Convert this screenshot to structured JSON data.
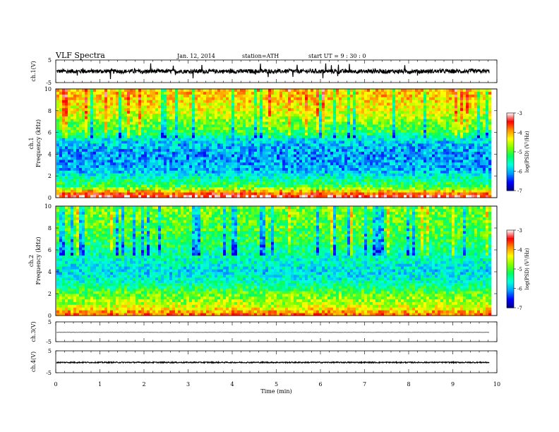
{
  "header": {
    "title": "VLF  Spectra",
    "date": "Jan. 12, 2014",
    "station": "station=ATH",
    "start": "start  UT =   9 : 30 : 0"
  },
  "chart_data": [
    {
      "type": "line",
      "panel": "ch1-waveform",
      "ylabel": "ch.1(V)",
      "ylim": [
        -5,
        5
      ],
      "yticks": [
        "5",
        "-5"
      ],
      "xlim": [
        0,
        10
      ],
      "trace_mean": 0,
      "trace_spread": 0.9,
      "spike_max": 3.5,
      "color": "#000000"
    },
    {
      "type": "heatmap",
      "panel": "ch1-spectrogram",
      "ylabel": "ch.1\nFrequency  (kHz)",
      "ylim": [
        0,
        10
      ],
      "yticks": [
        "0",
        "2",
        "4",
        "6",
        "8",
        "10"
      ],
      "xlim": [
        0,
        9.8
      ],
      "zlabel": "log(PSD) (V²/Hz)",
      "zlim": [
        -7,
        -3
      ],
      "colorbar_ticks": [
        "-3",
        "-4",
        "-5",
        "-6",
        "-7"
      ],
      "colormap": [
        "#000080",
        "#0000ff",
        "#00a0ff",
        "#00ffe0",
        "#00ff60",
        "#80ff00",
        "#ffff00",
        "#ff9000",
        "#ff0000",
        "#ffffff"
      ],
      "profile_khz": [
        0,
        0.5,
        1,
        1.5,
        2,
        2.5,
        3,
        4,
        5,
        5.5,
        6,
        7,
        8,
        9,
        10
      ],
      "profile_log_psd": [
        -3.2,
        -3.8,
        -5.0,
        -5.3,
        -5.6,
        -6.0,
        -6.0,
        -6.1,
        -5.9,
        -5.7,
        -5.1,
        -4.8,
        -4.4,
        -4.2,
        -4.1
      ]
    },
    {
      "type": "heatmap",
      "panel": "ch2-spectrogram",
      "ylabel": "ch.2\nFrequency  (kHz)",
      "ylim": [
        0,
        10
      ],
      "yticks": [
        "0",
        "2",
        "4",
        "6",
        "8",
        "10"
      ],
      "xlim": [
        0,
        9.8
      ],
      "zlabel": "log(PSD) (V²/Hz)",
      "zlim": [
        -7,
        -3
      ],
      "colorbar_ticks": [
        "-3",
        "-4",
        "-5",
        "-6",
        "-7"
      ],
      "colormap": [
        "#000080",
        "#0000ff",
        "#00a0ff",
        "#00ffe0",
        "#00ff60",
        "#80ff00",
        "#ffff00",
        "#ff9000",
        "#ff0000",
        "#ffffff"
      ],
      "profile_khz": [
        0,
        0.5,
        1,
        1.5,
        2,
        2.5,
        3,
        4,
        5,
        5.5,
        6,
        7,
        8,
        9,
        10
      ],
      "profile_log_psd": [
        -3.6,
        -4.2,
        -4.6,
        -4.7,
        -4.9,
        -5.2,
        -5.5,
        -5.8,
        -5.6,
        -5.5,
        -5.4,
        -5.1,
        -5.0,
        -4.9,
        -4.8
      ]
    },
    {
      "type": "line",
      "panel": "ch3-waveform",
      "ylabel": "ch.3(V)",
      "ylim": [
        -5,
        5
      ],
      "yticks": [
        "5",
        "-5"
      ],
      "xlim": [
        0,
        10
      ],
      "trace_mean": -0.3,
      "trace_spread": 0.05,
      "color": "#000000"
    },
    {
      "type": "line",
      "panel": "ch4-waveform",
      "ylabel": "ch.4(V)",
      "ylim": [
        -5,
        5
      ],
      "yticks": [
        "5",
        "-5"
      ],
      "xlim": [
        0,
        10
      ],
      "trace_mean": -0.3,
      "trace_spread": 0.25,
      "color": "#000000",
      "xlabel": "Time  (min)",
      "xticks": [
        "0",
        "1",
        "2",
        "3",
        "4",
        "5",
        "6",
        "7",
        "8",
        "9",
        "10"
      ]
    }
  ]
}
